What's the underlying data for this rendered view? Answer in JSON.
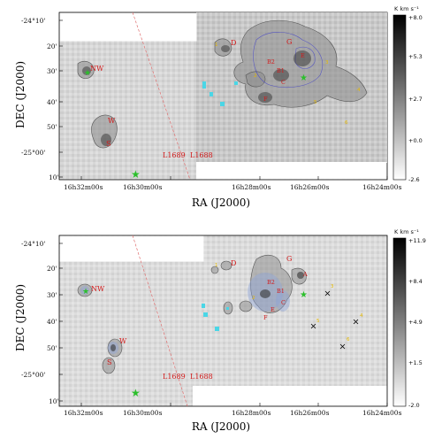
{
  "figure": {
    "panels": [
      {
        "id": "top",
        "ylabel": "DEC (J2000)",
        "xlabel": "RA (J2000)",
        "dec_ticks": [
          "-24°10'",
          "20'",
          "30'",
          "40'",
          "50'",
          "-25°00'",
          "10'"
        ],
        "ra_ticks": [
          "16h32m00s",
          "16h30m00s",
          "16h28m00s",
          "16h26m00s",
          "16h24m00s"
        ],
        "colorbar_unit": "K km s⁻¹",
        "colorbar_ticks": [
          "+8.0",
          "+5.3",
          "+2.7",
          "+0.0",
          "-2.6"
        ],
        "boundary_labels": [
          "L1689",
          "L1688"
        ],
        "sources": [
          "NW",
          "W",
          "S",
          "D",
          "G",
          "B2",
          "B1",
          "C",
          "E",
          "F"
        ]
      },
      {
        "id": "bottom",
        "ylabel": "DEC (J2000)",
        "xlabel": "RA (J2000)",
        "dec_ticks": [
          "-24°10'",
          "20'",
          "30'",
          "40'",
          "50'",
          "-25°00'",
          "10'"
        ],
        "ra_ticks": [
          "16h32m00s",
          "16h30m00s",
          "16h28m00s",
          "16h26m00s",
          "16h24m00s"
        ],
        "colorbar_unit": "K km s⁻¹",
        "colorbar_ticks": [
          "+11.9",
          "+8.4",
          "+4.9",
          "+1.5",
          "-2.0"
        ],
        "boundary_labels": [
          "L1689",
          "L1688"
        ],
        "sources": [
          "NW",
          "W",
          "S",
          "D",
          "G",
          "B2",
          "B1",
          "C",
          "E",
          "F",
          "A"
        ]
      }
    ]
  }
}
